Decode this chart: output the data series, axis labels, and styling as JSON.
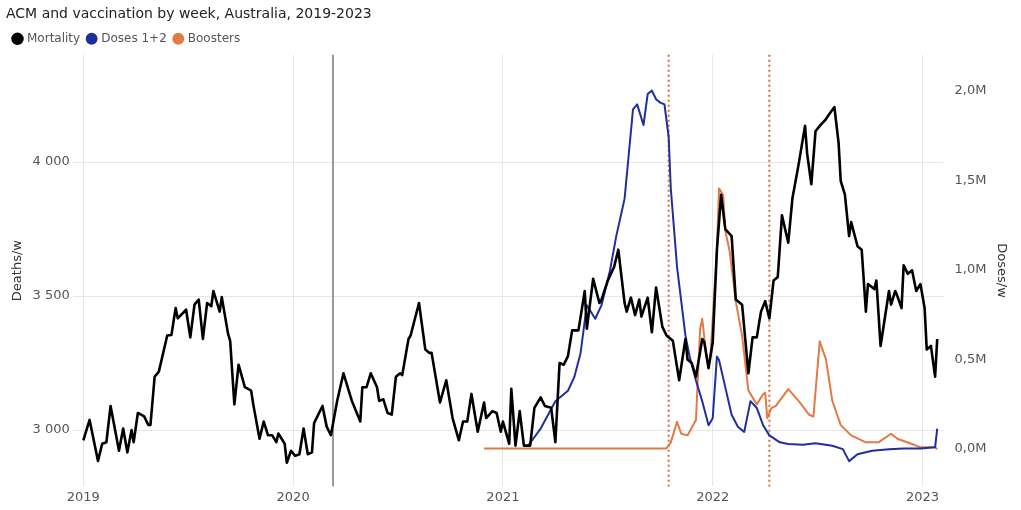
{
  "chart_data": {
    "type": "line",
    "title": "ACM and vaccination by week, Australia, 2019-2023",
    "ylabel": "Deaths/w",
    "y2label": "Doses/w",
    "xlim": [
      2018.95,
      2023.1
    ],
    "xticks": [
      2019,
      2020,
      2021,
      2022,
      2023
    ],
    "ylim": [
      2790,
      4400
    ],
    "yticks": [
      {
        "value": 3000,
        "label": "3 000"
      },
      {
        "value": 3500,
        "label": "3 500"
      },
      {
        "value": 4000,
        "label": "4 000"
      }
    ],
    "y2lim": [
      -0.21,
      2.2
    ],
    "y2ticks": [
      {
        "value": 0,
        "label": "0,0M"
      },
      {
        "value": 0.5,
        "label": "0,5M"
      },
      {
        "value": 1,
        "label": "1,0M"
      },
      {
        "value": 1.5,
        "label": "1,5M"
      },
      {
        "value": 2,
        "label": "2,0M"
      }
    ],
    "grid": true,
    "legend": "top left",
    "marker": "none",
    "line_style": "solid",
    "ref_lines": [
      {
        "axis": "x",
        "value": 2020.19,
        "color": "#999999",
        "line_style": "solid"
      },
      {
        "axis": "x",
        "value": 2021.79,
        "color": "#d96b3c",
        "line_style": "dotted"
      },
      {
        "axis": "x",
        "value": 2022.27,
        "color": "#d96b3c",
        "line_style": "dotted"
      }
    ],
    "series": [
      {
        "name": "Mortality",
        "color": "#000000",
        "x": [
          2019.0,
          2019.03,
          2019.07,
          2019.09,
          2019.11,
          2019.13,
          2019.17,
          2019.19,
          2019.21,
          2019.23,
          2019.24,
          2019.26,
          2019.29,
          2019.31,
          2019.32,
          2019.34,
          2019.36,
          2019.4,
          2019.42,
          2019.44,
          2019.45,
          2019.49,
          2019.51,
          2019.53,
          2019.55,
          2019.57,
          2019.59,
          2019.61,
          2019.62,
          2019.65,
          2019.66,
          2019.69,
          2019.7,
          2019.72,
          2019.74,
          2019.77,
          2019.8,
          2019.81,
          2019.84,
          2019.86,
          2019.88,
          2019.9,
          2019.92,
          2019.93,
          2019.96,
          2019.97,
          2019.99,
          2020.01,
          2020.03,
          2020.05,
          2020.07,
          2020.09,
          2020.1,
          2020.14,
          2020.16,
          2020.18,
          2020.21,
          2020.24,
          2020.28,
          2020.32,
          2020.33,
          2020.35,
          2020.37,
          2020.4,
          2020.41,
          2020.43,
          2020.45,
          2020.47,
          2020.49,
          2020.51,
          2020.52,
          2020.55,
          2020.56,
          2020.6,
          2020.63,
          2020.65,
          2020.66,
          2020.7,
          2020.73,
          2020.76,
          2020.79,
          2020.81,
          2020.83,
          2020.85,
          2020.88,
          2020.91,
          2020.92,
          2020.95,
          2020.97,
          2020.99,
          2021.0,
          2021.03,
          2021.04,
          2021.06,
          2021.08,
          2021.1,
          2021.13,
          2021.15,
          2021.18,
          2021.2,
          2021.23,
          2021.25,
          2021.27,
          2021.29,
          2021.31,
          2021.33,
          2021.36,
          2021.39,
          2021.4,
          2021.43,
          2021.46,
          2021.47,
          2021.5,
          2021.53,
          2021.55,
          2021.58,
          2021.59,
          2021.61,
          2021.63,
          2021.65,
          2021.66,
          2021.69,
          2021.71,
          2021.73,
          2021.76,
          2021.78,
          2021.81,
          2021.84,
          2021.87,
          2021.88,
          2021.9,
          2021.92,
          2021.95,
          2021.96,
          2021.98,
          2022.0,
          2022.02,
          2022.04,
          2022.06,
          2022.09,
          2022.11,
          2022.14,
          2022.17,
          2022.19,
          2022.21,
          2022.23,
          2022.25,
          2022.27,
          2022.29,
          2022.31,
          2022.33,
          2022.36,
          2022.38,
          2022.41,
          2022.44,
          2022.45,
          2022.47,
          2022.49,
          2022.51,
          2022.54,
          2022.55,
          2022.58,
          2022.6,
          2022.61,
          2022.63,
          2022.65,
          2022.66,
          2022.69,
          2022.71,
          2022.73,
          2022.74,
          2022.77,
          2022.78,
          2022.8,
          2022.84,
          2022.85,
          2022.87,
          2022.88,
          2022.9,
          2022.91,
          2022.93,
          2022.95,
          2022.97,
          2022.99,
          2023.01,
          2023.02,
          2023.04,
          2023.06,
          2023.07
        ],
        "values": [
          2962,
          3038,
          2885,
          2949,
          2955,
          3090,
          2923,
          3006,
          2917,
          3000,
          2955,
          3064,
          3051,
          3019,
          3019,
          3199,
          3218,
          3353,
          3355,
          3455,
          3417,
          3449,
          3346,
          3468,
          3487,
          3340,
          3474,
          3462,
          3519,
          3442,
          3496,
          3359,
          3333,
          3096,
          3244,
          3160,
          3147,
          3096,
          2968,
          3032,
          2981,
          2981,
          2955,
          2987,
          2949,
          2878,
          2923,
          2904,
          2910,
          3006,
          2910,
          2917,
          3026,
          3090,
          3013,
          2981,
          3109,
          3212,
          3109,
          3032,
          3160,
          3160,
          3212,
          3160,
          3109,
          3115,
          3064,
          3058,
          3199,
          3212,
          3205,
          3340,
          3353,
          3474,
          3301,
          3288,
          3288,
          3103,
          3186,
          3045,
          2962,
          3032,
          3032,
          3135,
          2994,
          3103,
          3045,
          3071,
          3064,
          2994,
          3032,
          2949,
          3154,
          2942,
          3071,
          2942,
          2942,
          3083,
          3122,
          3090,
          3083,
          2955,
          3250,
          3244,
          3276,
          3372,
          3372,
          3519,
          3378,
          3564,
          3474,
          3487,
          3558,
          3609,
          3673,
          3474,
          3442,
          3494,
          3429,
          3487,
          3423,
          3494,
          3365,
          3532,
          3385,
          3353,
          3333,
          3186,
          3340,
          3263,
          3250,
          3199,
          3340,
          3327,
          3231,
          3327,
          3673,
          3878,
          3750,
          3724,
          3487,
          3468,
          3212,
          3346,
          3346,
          3442,
          3481,
          3417,
          3558,
          3571,
          3801,
          3699,
          3865,
          3994,
          4135,
          4032,
          3917,
          4115,
          4135,
          4160,
          4173,
          4205,
          4071,
          3930,
          3878,
          3724,
          3776,
          3686,
          3673,
          3442,
          3545,
          3526,
          3558,
          3314,
          3519,
          3468,
          3519,
          3500,
          3455,
          3615,
          3583,
          3596,
          3519,
          3545,
          3455,
          3301,
          3314,
          3199,
          3340
        ]
      },
      {
        "name": "Doses 1+2",
        "color": "#1f2f9e",
        "axis": "y2",
        "x": [
          2021.12,
          2021.18,
          2021.25,
          2021.31,
          2021.34,
          2021.37,
          2021.4,
          2021.44,
          2021.47,
          2021.51,
          2021.54,
          2021.58,
          2021.6,
          2021.62,
          2021.64,
          2021.67,
          2021.69,
          2021.71,
          2021.73,
          2021.75,
          2021.77,
          2021.79,
          2021.8,
          2021.83,
          2021.87,
          2021.89,
          2021.92,
          2021.95,
          2021.98,
          2022.0,
          2022.02,
          2022.03,
          2022.06,
          2022.09,
          2022.12,
          2022.15,
          2022.18,
          2022.21,
          2022.24,
          2022.27,
          2022.32,
          2022.36,
          2022.43,
          2022.49,
          2022.57,
          2022.62,
          2022.65,
          2022.69,
          2022.76,
          2022.84,
          2022.91,
          2022.99,
          2023.06,
          2023.07
        ],
        "values": [
          0.017,
          0.113,
          0.266,
          0.324,
          0.4,
          0.534,
          0.802,
          0.726,
          0.802,
          0.994,
          1.186,
          1.397,
          1.646,
          1.895,
          1.923,
          1.808,
          1.981,
          2.0,
          1.952,
          1.933,
          1.923,
          1.741,
          1.456,
          1.015,
          0.632,
          0.515,
          0.381,
          0.266,
          0.132,
          0.171,
          0.515,
          0.496,
          0.343,
          0.19,
          0.123,
          0.094,
          0.266,
          0.228,
          0.132,
          0.075,
          0.036,
          0.027,
          0.023,
          0.031,
          0.017,
          -0.002,
          -0.069,
          -0.031,
          -0.011,
          -0.002,
          0.002,
          0.002,
          0.008,
          0.113
        ]
      },
      {
        "name": "Boosters",
        "color": "#e07b45",
        "axis": "y2",
        "x": [
          2020.91,
          2021.78,
          2021.8,
          2021.83,
          2021.85,
          2021.88,
          2021.92,
          2021.94,
          2021.95,
          2021.97,
          2021.98,
          2021.99,
          2022.02,
          2022.03,
          2022.05,
          2022.06,
          2022.08,
          2022.11,
          2022.14,
          2022.17,
          2022.21,
          2022.24,
          2022.25,
          2022.26,
          2022.28,
          2022.3,
          2022.36,
          2022.41,
          2022.46,
          2022.48,
          2022.51,
          2022.54,
          2022.57,
          2022.61,
          2022.66,
          2022.73,
          2022.79,
          2022.85,
          2022.88,
          2022.95,
          2022.99,
          2023.06,
          2023.07
        ],
        "values": [
          0.002,
          0.002,
          0.036,
          0.151,
          0.084,
          0.075,
          0.161,
          0.669,
          0.726,
          0.517,
          0.458,
          0.534,
          1.109,
          1.454,
          1.416,
          1.215,
          1.109,
          0.822,
          0.632,
          0.325,
          0.248,
          0.305,
          0.314,
          0.171,
          0.228,
          0.238,
          0.333,
          0.266,
          0.19,
          0.18,
          0.6,
          0.498,
          0.268,
          0.132,
          0.075,
          0.036,
          0.036,
          0.084,
          0.056,
          0.027,
          0.008,
          0.008,
          -0.002
        ]
      }
    ]
  }
}
